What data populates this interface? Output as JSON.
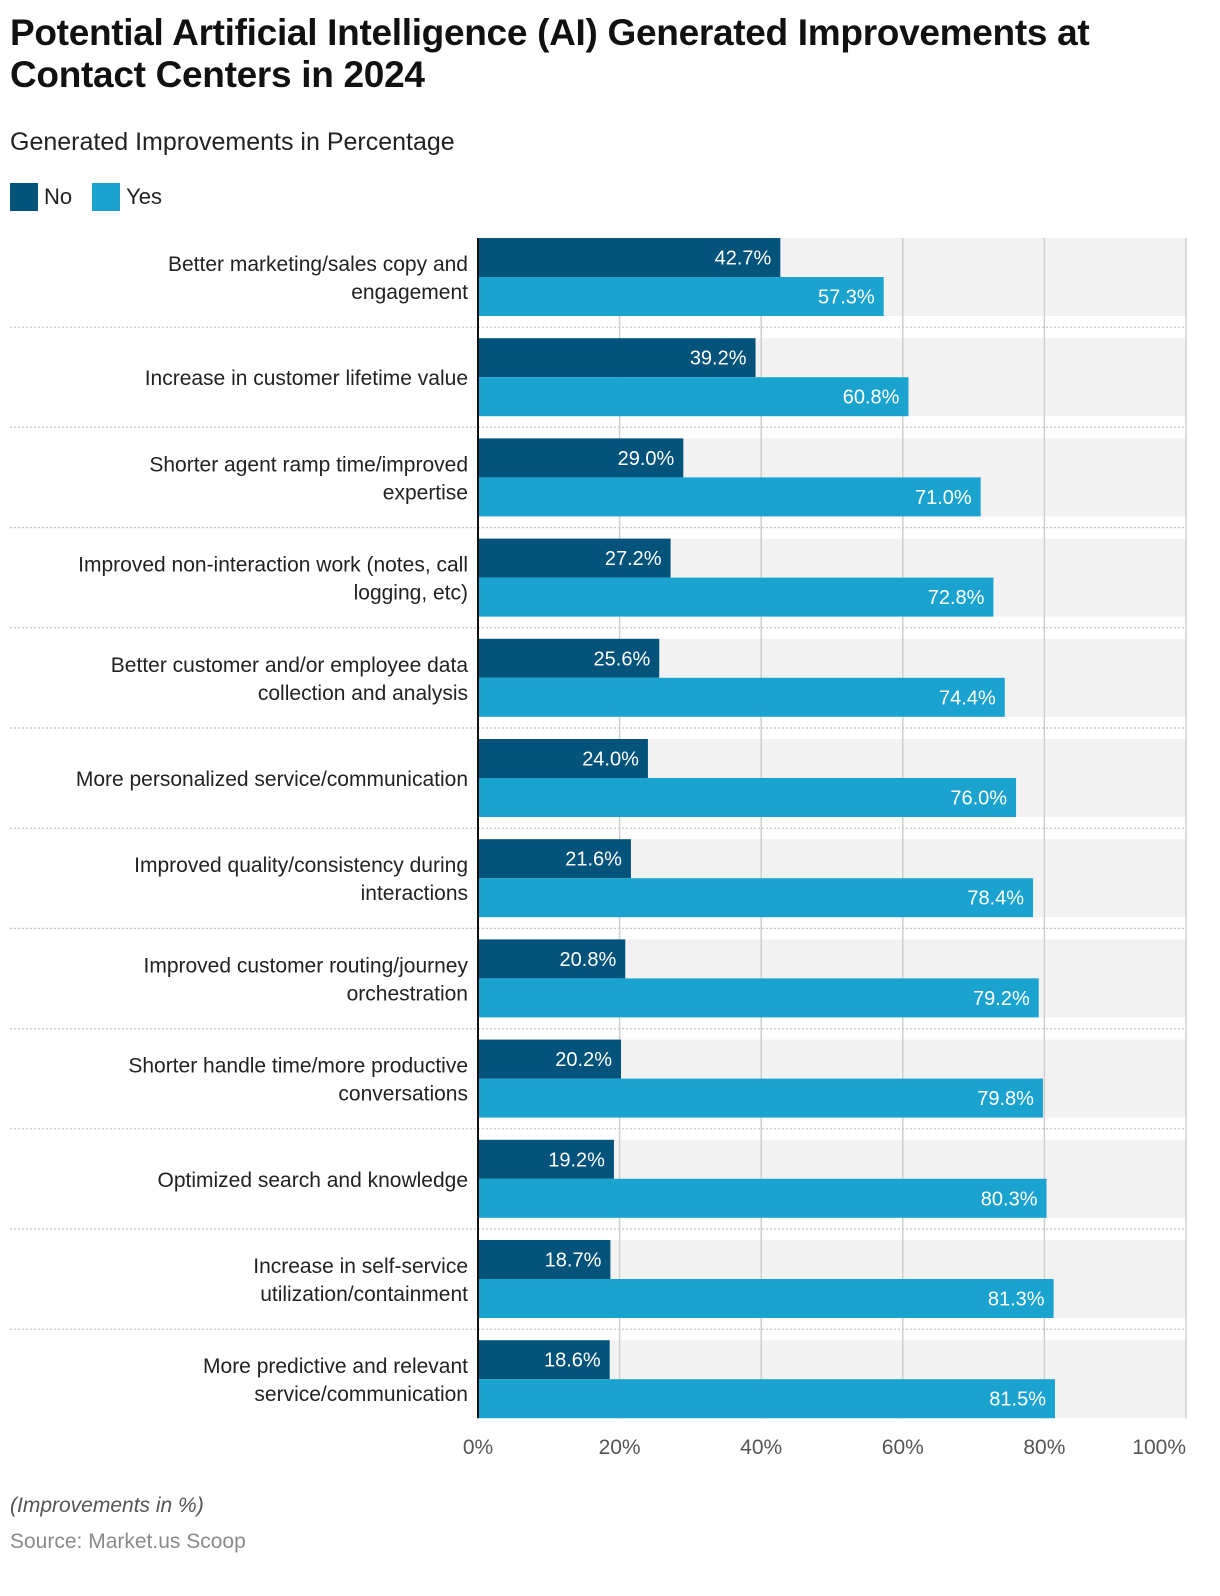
{
  "header": {
    "title": "Potential Artificial Intelligence (AI) Generated Improvements at Contact Centers in 2024",
    "subtitle": "Generated Improvements in Percentage"
  },
  "legend": [
    {
      "name": "No",
      "color": "#03537A"
    },
    {
      "name": "Yes",
      "color": "#1BA3D0"
    }
  ],
  "footer": {
    "note": "(Improvements in %)",
    "source": "Source: Market.us Scoop"
  },
  "chart_data": {
    "type": "bar",
    "orientation": "horizontal",
    "title": "Potential Artificial Intelligence (AI) Generated Improvements at Contact Centers in 2024",
    "subtitle": "Generated Improvements in Percentage",
    "xlabel": "",
    "ylabel": "",
    "xlim": [
      0,
      100
    ],
    "x_ticks": [
      "0%",
      "20%",
      "40%",
      "60%",
      "80%",
      "100%"
    ],
    "x_tick_values": [
      0,
      20,
      40,
      60,
      80,
      100
    ],
    "grid": true,
    "legend_position": "top-left",
    "categories": [
      [
        "Better marketing/sales copy and",
        "engagement"
      ],
      [
        "Increase in customer lifetime value"
      ],
      [
        "Shorter agent ramp time/improved",
        "expertise"
      ],
      [
        "Improved non-interaction work (notes, call",
        "logging, etc)"
      ],
      [
        "Better customer and/or employee data",
        "collection and analysis"
      ],
      [
        "More personalized service/communication"
      ],
      [
        "Improved quality/consistency during",
        "interactions"
      ],
      [
        "Improved customer routing/journey",
        "orchestration"
      ],
      [
        "Shorter handle time/more productive",
        "conversations"
      ],
      [
        "Optimized search and knowledge"
      ],
      [
        "Increase in self-service",
        "utilization/containment"
      ],
      [
        "More predictive and relevant",
        "service/communication"
      ]
    ],
    "series": [
      {
        "name": "No",
        "color": "#03537A",
        "values": [
          42.7,
          39.2,
          29.0,
          27.2,
          25.6,
          24.0,
          21.6,
          20.8,
          20.2,
          19.2,
          18.7,
          18.6
        ],
        "labels": [
          "42.7%",
          "39.2%",
          "29.0%",
          "27.2%",
          "25.6%",
          "24.0%",
          "21.6%",
          "20.8%",
          "20.2%",
          "19.2%",
          "18.7%",
          "18.6%"
        ]
      },
      {
        "name": "Yes",
        "color": "#1BA3D0",
        "values": [
          57.3,
          60.8,
          71.0,
          72.8,
          74.4,
          76.0,
          78.4,
          79.2,
          79.8,
          80.3,
          81.3,
          81.5
        ],
        "labels": [
          "57.3%",
          "60.8%",
          "71.0%",
          "72.8%",
          "74.4%",
          "76.0%",
          "78.4%",
          "79.2%",
          "79.8%",
          "80.3%",
          "81.3%",
          "81.5%"
        ]
      }
    ]
  }
}
